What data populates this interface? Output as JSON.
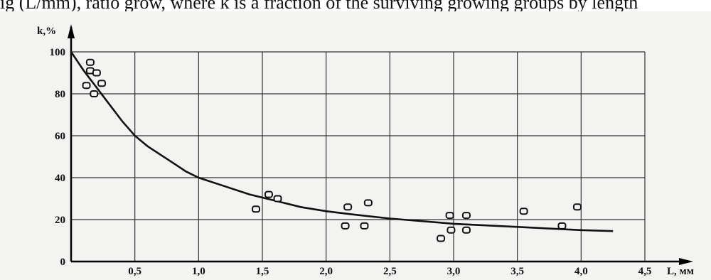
{
  "caption_fragment": "ig (L/mm), ratio grow, where k is a fraction of the surviving growing groups by length",
  "chart_data": {
    "type": "scatter",
    "title": "",
    "xlabel": "L, мм",
    "ylabel": "k,%",
    "xlim": [
      0,
      4.5
    ],
    "ylim": [
      0,
      100
    ],
    "x_ticks": [
      "0,5",
      "1,0",
      "1,5",
      "2,0",
      "2,5",
      "3,0",
      "3,5",
      "4,0",
      "4,5"
    ],
    "y_ticks": [
      "0",
      "20",
      "40",
      "60",
      "80",
      "100"
    ],
    "grid": true,
    "series": [
      {
        "kind": "points",
        "marker": "open-square",
        "points": [
          [
            0.15,
            95
          ],
          [
            0.15,
            91
          ],
          [
            0.2,
            90
          ],
          [
            0.12,
            84
          ],
          [
            0.24,
            85
          ],
          [
            0.18,
            80
          ],
          [
            1.45,
            25
          ],
          [
            1.55,
            32
          ],
          [
            1.62,
            30
          ],
          [
            2.15,
            17
          ],
          [
            2.17,
            26
          ],
          [
            2.3,
            17
          ],
          [
            2.33,
            28
          ],
          [
            2.9,
            11
          ],
          [
            2.97,
            22
          ],
          [
            2.98,
            15
          ],
          [
            3.1,
            22
          ],
          [
            3.1,
            15
          ],
          [
            3.55,
            24
          ],
          [
            3.85,
            17
          ],
          [
            3.97,
            26
          ]
        ]
      },
      {
        "kind": "curve",
        "points": [
          [
            0,
            100
          ],
          [
            0.1,
            91
          ],
          [
            0.2,
            83
          ],
          [
            0.3,
            75
          ],
          [
            0.4,
            67
          ],
          [
            0.5,
            60
          ],
          [
            0.6,
            55
          ],
          [
            0.7,
            51
          ],
          [
            0.8,
            47
          ],
          [
            0.9,
            43
          ],
          [
            1.0,
            40
          ],
          [
            1.2,
            36
          ],
          [
            1.4,
            32
          ],
          [
            1.6,
            29
          ],
          [
            1.8,
            26
          ],
          [
            2.0,
            24
          ],
          [
            2.2,
            22.5
          ],
          [
            2.5,
            20.5
          ],
          [
            3.0,
            18
          ],
          [
            3.5,
            16.5
          ],
          [
            4.0,
            15
          ],
          [
            4.25,
            14.5
          ]
        ]
      }
    ]
  }
}
